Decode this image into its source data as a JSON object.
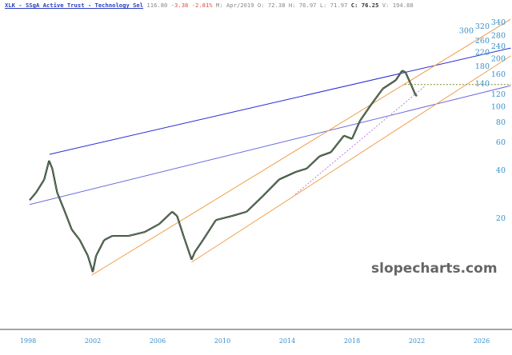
{
  "header": {
    "symbol": "XLK - SSgA Active Trust - Technology Sel",
    "last": "116.80",
    "change": "-3.38",
    "change_pct": "-2.81%",
    "period": "M: Apr/2019",
    "open": "O: 72.38",
    "high": "H: 76.97",
    "low": "L: 71.97",
    "close_label": "C:",
    "close": "76.25",
    "volume": "V: 194.88"
  },
  "watermark": "slopecharts.com",
  "chart_data": {
    "type": "line",
    "yscale": "log",
    "ylim": [
      7.5,
      350
    ],
    "xlim": [
      1996.3,
      2028.6
    ],
    "grid": false,
    "x_ticks": [
      "1998",
      "2002",
      "2006",
      "2010",
      "2014",
      "2018",
      "2022",
      "2026"
    ],
    "y_ticks": [
      "340",
      "320",
      "300",
      "280",
      "260",
      "240",
      "220",
      "200",
      "180",
      "160",
      "140",
      "120",
      "100",
      "80",
      "60",
      "40",
      "20"
    ],
    "series": [
      {
        "points": [
          [
            1998.1,
            26
          ],
          [
            1998.5,
            29
          ],
          [
            1999.0,
            35
          ],
          [
            1999.3,
            46
          ],
          [
            1999.5,
            41
          ],
          [
            1999.8,
            29
          ],
          [
            2000.2,
            23
          ],
          [
            2000.7,
            17
          ],
          [
            2001.2,
            14.6
          ],
          [
            2001.7,
            11.6
          ],
          [
            2002.0,
            9.2
          ],
          [
            2002.2,
            11.6
          ],
          [
            2002.7,
            14.6
          ],
          [
            2003.2,
            15.5
          ],
          [
            2004.2,
            15.5
          ],
          [
            2005.2,
            16.4
          ],
          [
            2006.1,
            18.4
          ],
          [
            2006.9,
            22
          ],
          [
            2007.2,
            20.7
          ],
          [
            2007.6,
            15.5
          ],
          [
            2008.1,
            11
          ],
          [
            2008.3,
            12.3
          ],
          [
            2008.8,
            14.6
          ],
          [
            2009.6,
            19.5
          ],
          [
            2010.6,
            20.7
          ],
          [
            2011.5,
            22
          ],
          [
            2012.5,
            27.6
          ],
          [
            2013.5,
            35
          ],
          [
            2014.5,
            39
          ],
          [
            2015.2,
            41
          ],
          [
            2016.0,
            49
          ],
          [
            2016.7,
            52
          ],
          [
            2017.5,
            66
          ],
          [
            2018.0,
            63
          ],
          [
            2018.5,
            82
          ],
          [
            2019.2,
            104
          ],
          [
            2019.9,
            130
          ],
          [
            2020.7,
            147
          ],
          [
            2021.1,
            169
          ],
          [
            2021.3,
            165
          ],
          [
            2021.7,
            134
          ],
          [
            2021.9,
            120
          ],
          [
            2022.0,
            116.8
          ]
        ],
        "color": "#2f4a2f"
      }
    ],
    "trendlines": [
      {
        "color": "#2a2ad8",
        "points": [
          [
            1999.33,
            50.4
          ],
          [
            2027.8,
            234
          ]
        ]
      },
      {
        "color": "#6a6ae0",
        "points": [
          [
            1998.1,
            24.4
          ],
          [
            2027.8,
            136
          ]
        ]
      },
      {
        "color": "#f0a050",
        "points": [
          [
            2001.94,
            8.8
          ],
          [
            2027.8,
            355
          ]
        ]
      },
      {
        "color": "#f0a050",
        "points": [
          [
            2008.1,
            10.6
          ],
          [
            2027.8,
            209
          ]
        ]
      },
      {
        "color": "#7a8a20",
        "dash": true,
        "points": [
          [
            2021.25,
            138
          ],
          [
            2027.8,
            138
          ]
        ]
      },
      {
        "color": "#c080e0",
        "dash": true,
        "points": [
          [
            2014.5,
            28.3
          ],
          [
            2022.5,
            135
          ]
        ]
      }
    ]
  }
}
